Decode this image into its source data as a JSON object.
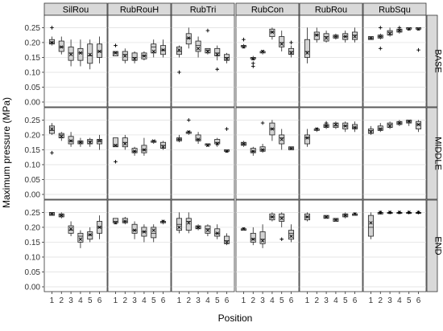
{
  "chart_data": {
    "type": "box",
    "ylabel": "Maximum pressure (MPa)",
    "xlabel": "Position",
    "ylim": [
      0,
      0.27
    ],
    "yticks": [
      "0.00",
      "0.05",
      "0.10",
      "0.15",
      "0.20",
      "0.25"
    ],
    "ytick_values": [
      0,
      0.05,
      0.1,
      0.15,
      0.2,
      0.25
    ],
    "xticks": [
      "1",
      "2",
      "3",
      "4",
      "5",
      "6"
    ],
    "columns": [
      "SilRou",
      "RubRouH",
      "RubTri",
      "RubCon",
      "RubRou",
      "RubSqu"
    ],
    "rows": [
      "BASE",
      "MIDDLE",
      "END"
    ],
    "grid": true,
    "panels": [
      [
        [
          [
            0.19,
            0.195,
            0.2,
            0.21,
            0.22,
            0.2,
            [
              0.25
            ]
          ],
          [
            0.16,
            0.17,
            0.185,
            0.205,
            0.22,
            0.185,
            []
          ],
          [
            0.12,
            0.14,
            0.165,
            0.185,
            0.21,
            0.16,
            []
          ],
          [
            0.12,
            0.14,
            0.165,
            0.18,
            0.21,
            0.165,
            []
          ],
          [
            0.11,
            0.13,
            0.155,
            0.195,
            0.21,
            0.16,
            []
          ],
          [
            0.13,
            0.15,
            0.17,
            0.195,
            0.22,
            0.17,
            []
          ]
        ],
        [
          [
            0.155,
            0.155,
            0.165,
            0.17,
            0.17,
            0.165,
            [
              0.19
            ]
          ],
          [
            0.13,
            0.14,
            0.16,
            0.17,
            0.18,
            0.155,
            []
          ],
          [
            0.13,
            0.14,
            0.15,
            0.165,
            0.17,
            0.145,
            []
          ],
          [
            0.14,
            0.145,
            0.155,
            0.165,
            0.17,
            0.155,
            []
          ],
          [
            0.15,
            0.165,
            0.185,
            0.195,
            0.21,
            0.17,
            []
          ],
          [
            0.15,
            0.16,
            0.175,
            0.19,
            0.21,
            0.175,
            []
          ]
        ],
        [
          [
            0.15,
            0.16,
            0.17,
            0.185,
            0.19,
            0.175,
            [
              0.1
            ]
          ],
          [
            0.18,
            0.195,
            0.215,
            0.23,
            0.25,
            0.215,
            []
          ],
          [
            0.15,
            0.17,
            0.19,
            0.205,
            0.22,
            0.18,
            []
          ],
          [
            0.16,
            0.165,
            0.175,
            0.18,
            0.18,
            0.17,
            [
              0.24
            ]
          ],
          [
            0.14,
            0.155,
            0.165,
            0.18,
            0.19,
            0.16,
            [
              0.11
            ]
          ],
          [
            0.13,
            0.14,
            0.15,
            0.16,
            0.165,
            0.145,
            []
          ]
        ],
        [
          [
            0.18,
            0.185,
            0.19,
            0.19,
            0.195,
            0.185,
            [
              0.21
            ]
          ],
          [
            0.14,
            0.145,
            0.145,
            0.15,
            0.155,
            0.145,
            [
              0.13,
              0.12
            ]
          ],
          [
            0.16,
            0.165,
            0.17,
            0.17,
            0.175,
            0.17,
            []
          ],
          [
            0.21,
            0.22,
            0.235,
            0.245,
            0.25,
            0.235,
            []
          ],
          [
            0.17,
            0.185,
            0.2,
            0.22,
            0.24,
            0.195,
            []
          ],
          [
            0.15,
            0.16,
            0.17,
            0.18,
            0.19,
            0.165,
            [
              0.2
            ]
          ]
        ],
        [
          [
            0.13,
            0.15,
            0.17,
            0.21,
            0.25,
            0.165,
            []
          ],
          [
            0.2,
            0.21,
            0.225,
            0.235,
            0.25,
            0.225,
            []
          ],
          [
            0.2,
            0.205,
            0.22,
            0.23,
            0.24,
            0.215,
            []
          ],
          [
            0.21,
            0.215,
            0.22,
            0.225,
            0.23,
            0.22,
            []
          ],
          [
            0.2,
            0.21,
            0.22,
            0.23,
            0.24,
            0.22,
            []
          ],
          [
            0.2,
            0.21,
            0.225,
            0.235,
            0.25,
            0.22,
            []
          ]
        ],
        [
          [
            0.21,
            0.21,
            0.215,
            0.22,
            0.22,
            0.215,
            []
          ],
          [
            0.21,
            0.215,
            0.22,
            0.225,
            0.23,
            0.22,
            [
              0.25,
              0.18
            ]
          ],
          [
            0.22,
            0.225,
            0.235,
            0.24,
            0.25,
            0.23,
            []
          ],
          [
            0.23,
            0.235,
            0.24,
            0.245,
            0.25,
            0.24,
            [
              0.25
            ]
          ],
          [
            0.24,
            0.245,
            0.245,
            0.25,
            0.25,
            0.245,
            []
          ],
          [
            0.24,
            0.245,
            0.245,
            0.25,
            0.25,
            0.245,
            [
              0.175
            ]
          ]
        ]
      ],
      [
        [
          [
            0.2,
            0.205,
            0.215,
            0.23,
            0.24,
            0.22,
            [
              0.14
            ]
          ],
          [
            0.18,
            0.19,
            0.2,
            0.205,
            0.21,
            0.195,
            []
          ],
          [
            0.16,
            0.17,
            0.18,
            0.195,
            0.21,
            0.18,
            []
          ],
          [
            0.16,
            0.17,
            0.175,
            0.18,
            0.19,
            0.175,
            []
          ],
          [
            0.16,
            0.17,
            0.18,
            0.185,
            0.19,
            0.175,
            []
          ],
          [
            0.15,
            0.17,
            0.18,
            0.185,
            0.2,
            0.18,
            []
          ]
        ],
        [
          [
            0.16,
            0.16,
            0.165,
            0.19,
            0.19,
            0.165,
            [
              0.11
            ]
          ],
          [
            0.15,
            0.16,
            0.175,
            0.19,
            0.2,
            0.17,
            []
          ],
          [
            0.13,
            0.14,
            0.145,
            0.155,
            0.16,
            0.145,
            []
          ],
          [
            0.13,
            0.14,
            0.15,
            0.165,
            0.19,
            0.15,
            []
          ],
          [
            0.17,
            0.175,
            0.18,
            0.18,
            0.18,
            0.18,
            []
          ],
          [
            0.15,
            0.155,
            0.165,
            0.175,
            0.18,
            0.16,
            []
          ]
        ],
        [
          [
            0.175,
            0.18,
            0.185,
            0.19,
            0.2,
            0.185,
            []
          ],
          [
            0.2,
            0.205,
            0.21,
            0.21,
            0.215,
            0.21,
            [
              0.25
            ]
          ],
          [
            0.17,
            0.18,
            0.185,
            0.2,
            0.21,
            0.185,
            []
          ],
          [
            0.16,
            0.165,
            0.17,
            0.17,
            0.17,
            0.165,
            []
          ],
          [
            0.16,
            0.17,
            0.175,
            0.185,
            0.19,
            0.17,
            []
          ],
          [
            0.14,
            0.145,
            0.145,
            0.15,
            0.15,
            0.145,
            [
              0.22
            ]
          ]
        ],
        [
          [
            0.16,
            0.165,
            0.17,
            0.175,
            0.18,
            0.17,
            []
          ],
          [
            0.13,
            0.14,
            0.145,
            0.155,
            0.16,
            0.145,
            []
          ],
          [
            0.14,
            0.145,
            0.15,
            0.16,
            0.17,
            0.15,
            [
              0.24
            ]
          ],
          [
            0.18,
            0.2,
            0.22,
            0.24,
            0.25,
            0.22,
            []
          ],
          [
            0.15,
            0.17,
            0.19,
            0.2,
            0.22,
            0.185,
            []
          ],
          [
            0.15,
            0.15,
            0.155,
            0.16,
            0.16,
            0.155,
            []
          ]
        ],
        [
          [
            0.16,
            0.17,
            0.19,
            0.2,
            0.22,
            0.19,
            []
          ],
          [
            0.21,
            0.215,
            0.22,
            0.22,
            0.225,
            0.22,
            []
          ],
          [
            0.22,
            0.225,
            0.23,
            0.235,
            0.24,
            0.23,
            [
              0.24
            ]
          ],
          [
            0.22,
            0.225,
            0.23,
            0.24,
            0.245,
            0.235,
            []
          ],
          [
            0.21,
            0.22,
            0.23,
            0.24,
            0.245,
            0.23,
            []
          ],
          [
            0.21,
            0.22,
            0.225,
            0.235,
            0.245,
            0.225,
            []
          ]
        ],
        [
          [
            0.2,
            0.205,
            0.215,
            0.22,
            0.23,
            0.21,
            []
          ],
          [
            0.21,
            0.215,
            0.22,
            0.23,
            0.24,
            0.22,
            []
          ],
          [
            0.22,
            0.225,
            0.235,
            0.24,
            0.245,
            0.23,
            []
          ],
          [
            0.23,
            0.235,
            0.24,
            0.245,
            0.25,
            0.24,
            []
          ],
          [
            0.23,
            0.24,
            0.245,
            0.25,
            0.25,
            0.245,
            []
          ],
          [
            0.21,
            0.22,
            0.235,
            0.245,
            0.25,
            0.235,
            []
          ]
        ]
      ],
      [
        [
          [
            0.24,
            0.24,
            0.245,
            0.25,
            0.25,
            0.245,
            []
          ],
          [
            0.23,
            0.235,
            0.24,
            0.245,
            0.25,
            0.24,
            []
          ],
          [
            0.17,
            0.18,
            0.19,
            0.205,
            0.22,
            0.195,
            []
          ],
          [
            0.13,
            0.15,
            0.17,
            0.18,
            0.19,
            0.16,
            []
          ],
          [
            0.15,
            0.16,
            0.175,
            0.185,
            0.2,
            0.175,
            []
          ],
          [
            0.16,
            0.18,
            0.2,
            0.22,
            0.24,
            0.2,
            []
          ]
        ],
        [
          [
            0.21,
            0.215,
            0.22,
            0.23,
            0.23,
            0.215,
            []
          ],
          [
            0.21,
            0.215,
            0.22,
            0.23,
            0.235,
            0.22,
            []
          ],
          [
            0.16,
            0.18,
            0.19,
            0.21,
            0.22,
            0.19,
            []
          ],
          [
            0.15,
            0.17,
            0.185,
            0.2,
            0.21,
            0.185,
            []
          ],
          [
            0.15,
            0.165,
            0.18,
            0.2,
            0.21,
            0.19,
            []
          ],
          [
            0.21,
            0.215,
            0.22,
            0.22,
            0.225,
            0.22,
            []
          ]
        ],
        [
          [
            0.18,
            0.19,
            0.21,
            0.23,
            0.25,
            0.2,
            []
          ],
          [
            0.18,
            0.19,
            0.22,
            0.23,
            0.25,
            0.215,
            []
          ],
          [
            0.19,
            0.195,
            0.2,
            0.205,
            0.21,
            0.2,
            []
          ],
          [
            0.17,
            0.18,
            0.195,
            0.205,
            0.21,
            0.19,
            []
          ],
          [
            0.16,
            0.17,
            0.18,
            0.195,
            0.21,
            0.18,
            []
          ],
          [
            0.14,
            0.145,
            0.155,
            0.17,
            0.18,
            0.15,
            []
          ]
        ],
        [
          [
            0.19,
            0.19,
            0.195,
            0.195,
            0.2,
            0.195,
            []
          ],
          [
            0.14,
            0.15,
            0.16,
            0.18,
            0.2,
            0.16,
            []
          ],
          [
            0.13,
            0.145,
            0.16,
            0.185,
            0.21,
            0.155,
            []
          ],
          [
            0.22,
            0.225,
            0.235,
            0.245,
            0.25,
            0.235,
            []
          ],
          [
            0.2,
            0.22,
            0.235,
            0.245,
            0.25,
            0.23,
            [
              0.16
            ]
          ],
          [
            0.15,
            0.16,
            0.18,
            0.19,
            0.21,
            0.17,
            []
          ]
        ],
        [
          [
            0.22,
            0.225,
            0.235,
            0.245,
            0.25,
            0.235,
            []
          ],
          [],
          [
            0.23,
            0.23,
            0.235,
            0.24,
            0.24,
            0.235,
            []
          ],
          [
            0.22,
            0.22,
            0.225,
            0.23,
            0.23,
            0.225,
            []
          ],
          [
            0.23,
            0.235,
            0.24,
            0.245,
            0.25,
            0.24,
            []
          ],
          [
            0.24,
            0.24,
            0.245,
            0.245,
            0.25,
            0.245,
            []
          ]
        ],
        [
          [
            0.16,
            0.17,
            0.2,
            0.24,
            0.25,
            0.215,
            []
          ],
          [
            0.245,
            0.245,
            0.245,
            0.25,
            0.25,
            0.25,
            [
              0.25
            ]
          ],
          [
            0.25,
            0.25,
            0.25,
            0.25,
            0.25,
            0.25,
            [
              0.25
            ]
          ],
          [
            0.25,
            0.25,
            0.25,
            0.25,
            0.25,
            0.25,
            [
              0.25
            ]
          ],
          [
            0.25,
            0.25,
            0.25,
            0.25,
            0.25,
            0.25,
            [
              0.25
            ]
          ],
          [
            0.25,
            0.25,
            0.25,
            0.25,
            0.25,
            0.25,
            [
              0.25
            ]
          ]
        ]
      ]
    ]
  }
}
